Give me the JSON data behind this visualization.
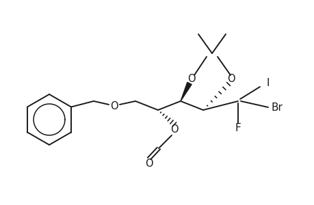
{
  "bg": "#ffffff",
  "lc": "#1a1a1a",
  "lw": 1.4,
  "figsize": [
    4.6,
    3.0
  ],
  "dpi": 100,
  "xlim": [
    0.0,
    460
  ],
  "ylim": [
    0.0,
    300
  ]
}
